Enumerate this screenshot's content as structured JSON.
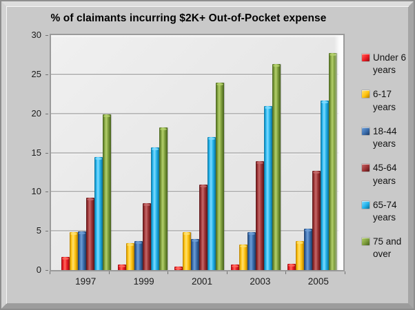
{
  "window": {
    "background": "#c9c9c9"
  },
  "colors": {
    "frame_bg": "#c9c9c9",
    "plot_bg": "#e8e8e8",
    "gridline": "#bdbdbd",
    "plot_border": "#9a9a9a",
    "axis_text": "#1c1c1c",
    "title_text": "#000000"
  },
  "chart_data": {
    "type": "bar",
    "title": "% of claimants incurring $2K+ Out-of-Pocket expense",
    "xlabel": "",
    "ylabel": "",
    "ylim": [
      0,
      30
    ],
    "yticks": [
      30,
      25,
      20,
      15,
      10,
      5,
      0
    ],
    "grid": true,
    "legend_position": "right",
    "categories": [
      "1997",
      "1999",
      "2001",
      "2003",
      "2005"
    ],
    "series": [
      {
        "name": "Under 6 years",
        "color": "#ed1c24",
        "light": "#ff6a5e",
        "dark": "#8f0e12",
        "values": [
          1.7,
          0.7,
          0.4,
          0.7,
          0.8
        ]
      },
      {
        "name": "6-17 years",
        "color": "#ffc20e",
        "light": "#ffe170",
        "dark": "#b27c00",
        "values": [
          4.8,
          3.4,
          4.8,
          3.3,
          3.7
        ]
      },
      {
        "name": "18-44 years",
        "color": "#3a6dad",
        "light": "#6f9ed6",
        "dark": "#1d3a63",
        "values": [
          4.9,
          3.7,
          4.0,
          4.8,
          5.3
        ]
      },
      {
        "name": "45-64 years",
        "color": "#9c3234",
        "light": "#c46a6a",
        "dark": "#571517",
        "values": [
          9.2,
          8.5,
          10.9,
          13.9,
          12.7
        ]
      },
      {
        "name": "65-74 years",
        "color": "#21b2ea",
        "light": "#7fdbff",
        "dark": "#0c6e96",
        "values": [
          14.4,
          15.7,
          17.0,
          20.9,
          21.6
        ]
      },
      {
        "name": "75 and over",
        "color": "#7d9d3c",
        "light": "#b4d06c",
        "dark": "#46611c",
        "values": [
          19.9,
          18.2,
          23.9,
          26.3,
          27.7
        ]
      }
    ]
  }
}
